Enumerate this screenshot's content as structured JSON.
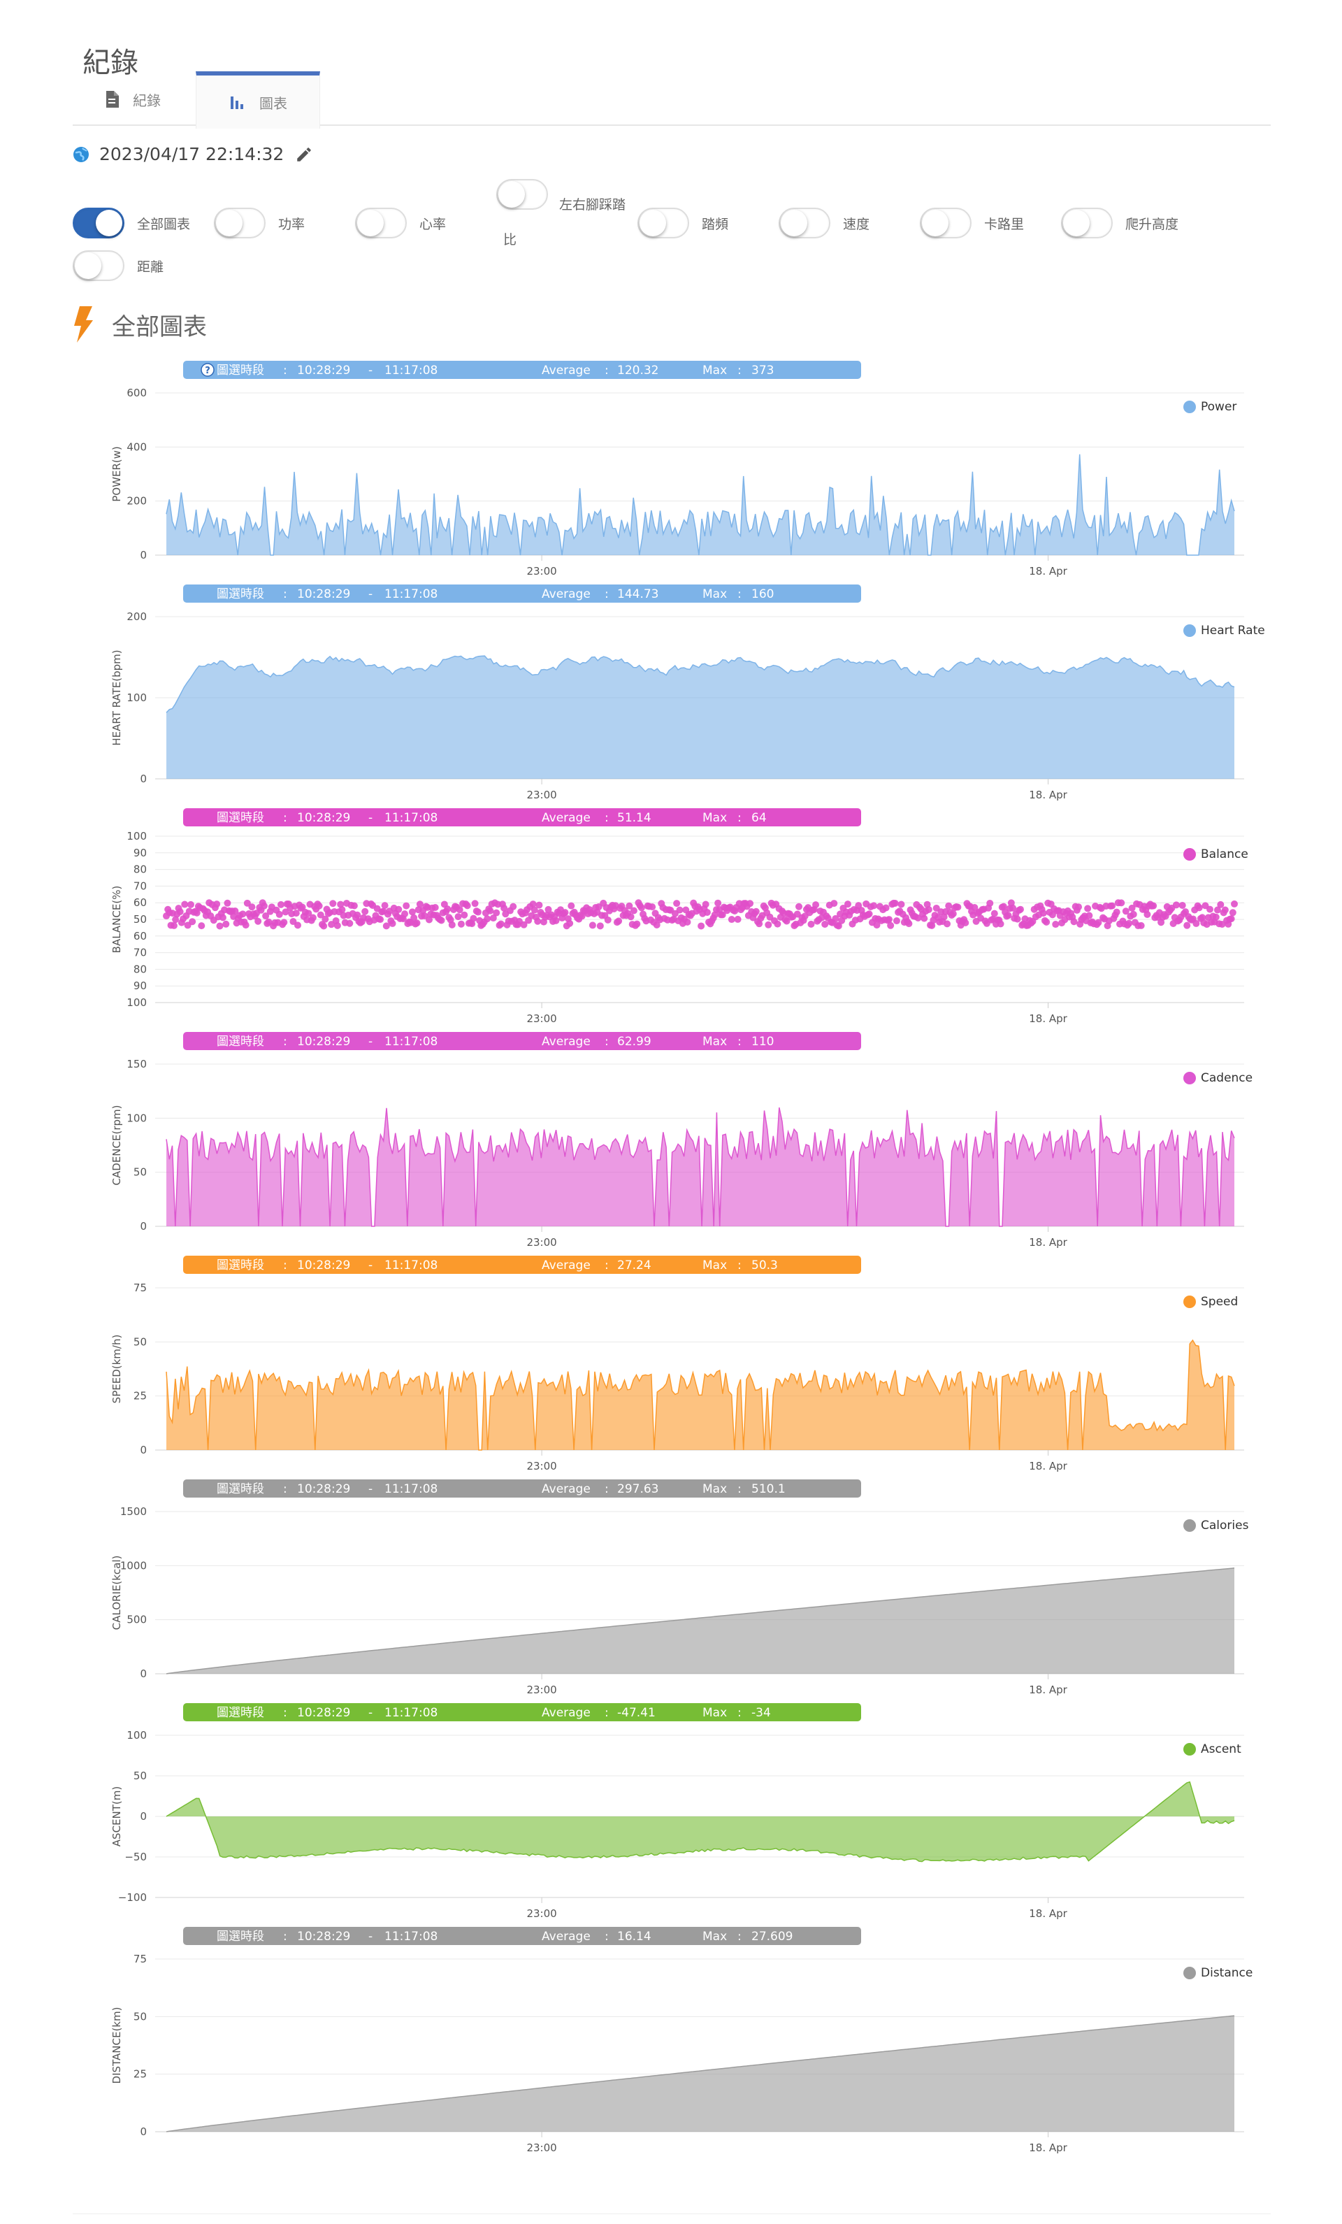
{
  "page": {
    "title": "紀錄"
  },
  "tabs": [
    {
      "label": "紀錄",
      "icon": "document-icon",
      "active": false
    },
    {
      "label": "圖表",
      "icon": "bar-chart-icon",
      "active": true
    }
  ],
  "record": {
    "datetime": "2023/04/17 22:14:32",
    "icon": "globe-icon"
  },
  "toggles": [
    {
      "id": "all",
      "label": "全部圖表",
      "on": true
    },
    {
      "id": "power",
      "label": "功率",
      "on": false
    },
    {
      "id": "heart",
      "label": "心率",
      "on": false
    },
    {
      "id": "balance",
      "label": "左右腳踩踏比",
      "on": false
    },
    {
      "id": "cadence",
      "label": "踏頻",
      "on": false
    },
    {
      "id": "speed",
      "label": "速度",
      "on": false
    },
    {
      "id": "calorie",
      "label": "卡路里",
      "on": false
    },
    {
      "id": "ascent",
      "label": "爬升高度",
      "on": false
    },
    {
      "id": "distance",
      "label": "距離",
      "on": false
    }
  ],
  "section": {
    "title": "全部圖表",
    "icon": "lightning-icon"
  },
  "colors": {
    "power": "#7db3e8",
    "heart": "#7db3e8",
    "balance": "#e04fc9",
    "cadence": "#dd57d0",
    "speed": "#fb9a2c",
    "calorie": "#9c9c9c",
    "ascent": "#77bd35",
    "distance": "#9c9c9c"
  },
  "chart_data": [
    {
      "id": "power",
      "type": "area",
      "ylabel": "POWER(w)",
      "legend": "Power",
      "yticks": [
        "0",
        "200",
        "400",
        "600"
      ],
      "ylim": [
        0,
        600
      ],
      "xticks": [
        "23:00",
        "18. Apr"
      ],
      "info": {
        "period_label": "圖選時段",
        "start": "10:28:29",
        "end": "11:17:08",
        "avg_label": "Average",
        "average": "120.32",
        "max_label": "Max",
        "max": "373",
        "help_icon": true
      }
    },
    {
      "id": "heart",
      "type": "area",
      "ylabel": "HEART RATE(bpm)",
      "legend": "Heart Rate",
      "yticks": [
        "0",
        "100",
        "200"
      ],
      "ylim": [
        0,
        200
      ],
      "xticks": [
        "23:00",
        "18. Apr"
      ],
      "info": {
        "period_label": "圖選時段",
        "start": "10:28:29",
        "end": "11:17:08",
        "avg_label": "Average",
        "average": "144.73",
        "max_label": "Max",
        "max": "160"
      }
    },
    {
      "id": "balance",
      "type": "scatter",
      "ylabel": "BALANCE(%)",
      "legend": "Balance",
      "yticks": [
        "100",
        "90",
        "80",
        "70",
        "60",
        "50",
        "60",
        "70",
        "80",
        "90",
        "100"
      ],
      "ylim": [
        -50,
        50
      ],
      "xticks": [
        "23:00",
        "18. Apr"
      ],
      "info": {
        "period_label": "圖選時段",
        "start": "10:28:29",
        "end": "11:17:08",
        "avg_label": "Average",
        "average": "51.14",
        "max_label": "Max",
        "max": "64"
      }
    },
    {
      "id": "cadence",
      "type": "area",
      "ylabel": "CADENCE(rpm)",
      "legend": "Cadence",
      "yticks": [
        "0",
        "50",
        "100",
        "150"
      ],
      "ylim": [
        0,
        150
      ],
      "xticks": [
        "23:00",
        "18. Apr"
      ],
      "info": {
        "period_label": "圖選時段",
        "start": "10:28:29",
        "end": "11:17:08",
        "avg_label": "Average",
        "average": "62.99",
        "max_label": "Max",
        "max": "110"
      }
    },
    {
      "id": "speed",
      "type": "area",
      "ylabel": "SPEED(km/h)",
      "legend": "Speed",
      "yticks": [
        "0",
        "25",
        "50",
        "75"
      ],
      "ylim": [
        0,
        75
      ],
      "xticks": [
        "23:00",
        "18. Apr"
      ],
      "info": {
        "period_label": "圖選時段",
        "start": "10:28:29",
        "end": "11:17:08",
        "avg_label": "Average",
        "average": "27.24",
        "max_label": "Max",
        "max": "50.3"
      }
    },
    {
      "id": "calorie",
      "type": "area",
      "ylabel": "CALORIE(kcal)",
      "legend": "Calories",
      "yticks": [
        "0",
        "500",
        "1000",
        "1500"
      ],
      "ylim": [
        0,
        1500
      ],
      "xticks": [
        "23:00",
        "18. Apr"
      ],
      "info": {
        "period_label": "圖選時段",
        "start": "10:28:29",
        "end": "11:17:08",
        "avg_label": "Average",
        "average": "297.63",
        "max_label": "Max",
        "max": "510.1"
      }
    },
    {
      "id": "ascent",
      "type": "area",
      "ylabel": "ASCENT(m)",
      "legend": "Ascent",
      "yticks": [
        "−100",
        "−50",
        "0",
        "50",
        "100"
      ],
      "ylim": [
        -100,
        100
      ],
      "xticks": [
        "23:00",
        "18. Apr"
      ],
      "info": {
        "period_label": "圖選時段",
        "start": "10:28:29",
        "end": "11:17:08",
        "avg_label": "Average",
        "average": "-47.41",
        "max_label": "Max",
        "max": "-34"
      }
    },
    {
      "id": "distance",
      "type": "area",
      "ylabel": "DISTANCE(km)",
      "legend": "Distance",
      "yticks": [
        "0",
        "25",
        "50",
        "75"
      ],
      "ylim": [
        0,
        75
      ],
      "xticks": [
        "23:00",
        "18. Apr"
      ],
      "info": {
        "period_label": "圖選時段",
        "start": "10:28:29",
        "end": "11:17:08",
        "avg_label": "Average",
        "average": "16.14",
        "max_label": "Max",
        "max": "27.609"
      }
    }
  ]
}
